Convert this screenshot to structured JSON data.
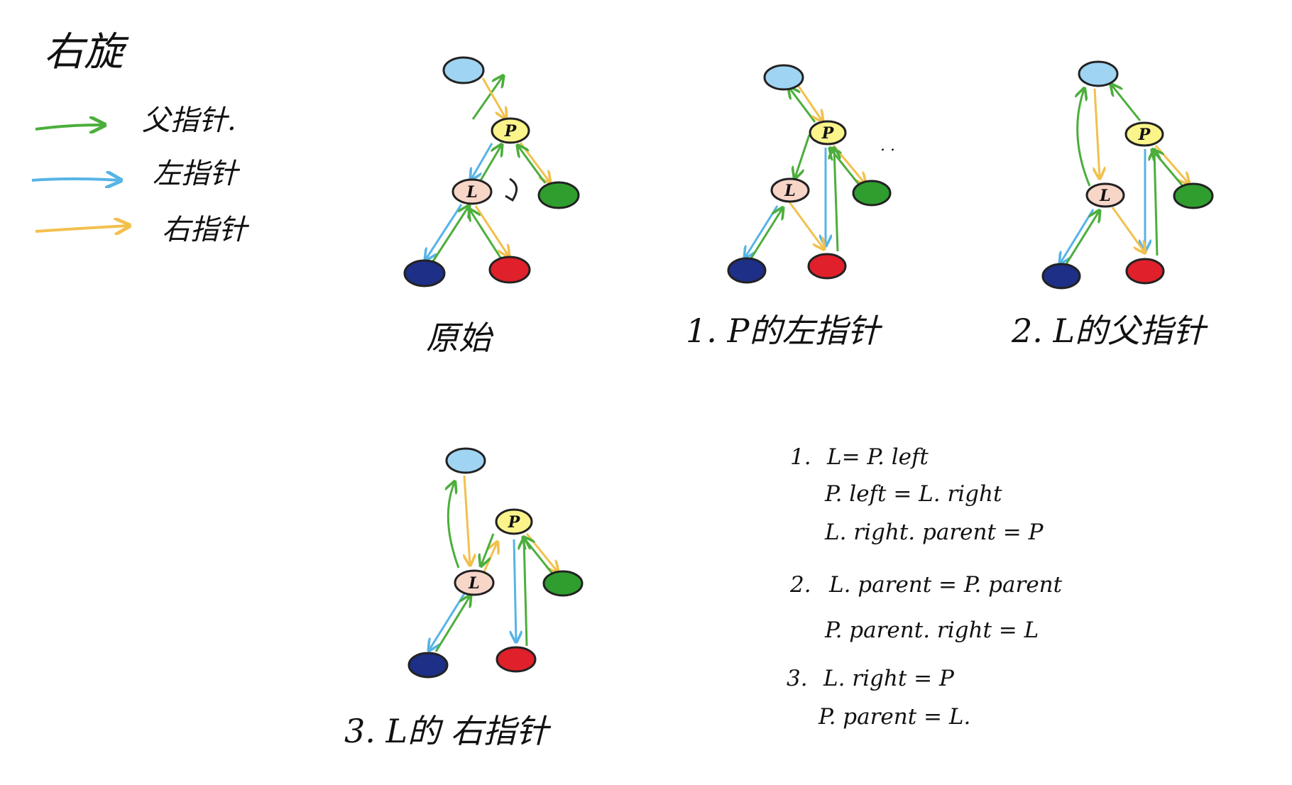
{
  "title": "右旋",
  "colors": {
    "parent": "#4cae3c",
    "left": "#56b4e6",
    "right": "#f2c04d",
    "node_top": "#9fd4f3",
    "node_p": "#fbf48a",
    "node_l": "#f7d6c8",
    "node_green": "#2f9e2f",
    "node_navy": "#1d2f86",
    "node_red": "#e0202a",
    "stroke": "#222222"
  },
  "legend": [
    {
      "color_key": "parent",
      "label": "父指针."
    },
    {
      "color_key": "left",
      "label": "左指针"
    },
    {
      "color_key": "right",
      "label": "右指针"
    }
  ],
  "node_labels": {
    "p": "P",
    "l": "L"
  },
  "diagrams": [
    {
      "caption": "原始"
    },
    {
      "caption": "1.  P的左指针"
    },
    {
      "caption": "2.  L的父指针"
    },
    {
      "caption": "3.  L的 右指针"
    }
  ],
  "code": [
    {
      "num": "1.",
      "lines": [
        "L= P. left",
        "P. left = L. right",
        "L. right. parent = P"
      ]
    },
    {
      "num": "2.",
      "lines": [
        "L. parent = P. parent",
        "P. parent. right = L"
      ]
    },
    {
      "num": "3.",
      "lines": [
        "L. right = P",
        "P. parent = L."
      ]
    }
  ]
}
